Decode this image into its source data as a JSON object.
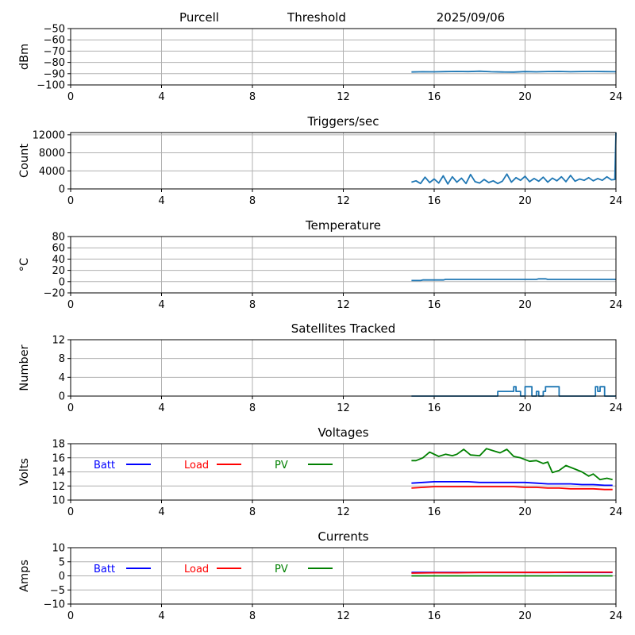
{
  "header": {
    "station": "Purcell",
    "mode": "Threshold",
    "date": "2025/09/06"
  },
  "colors": {
    "series_default": "#1f77b4",
    "batt": "#0000ff",
    "load": "#ff0000",
    "pv": "#008000",
    "grid": "#b0b0b0"
  },
  "chart_data": [
    {
      "type": "line",
      "title": "",
      "xlabel": "",
      "ylabel": "dBm",
      "xlim": [
        0,
        24
      ],
      "ylim": [
        -100,
        -50
      ],
      "xticks": [
        "0",
        "4",
        "8",
        "12",
        "16",
        "20",
        "24"
      ],
      "yticks": [
        "−50",
        "−60",
        "−70",
        "−80",
        "−90",
        "−100"
      ],
      "grid": true,
      "series": [
        {
          "color": "#1f77b4",
          "x": [
            15.0,
            15.5,
            16.0,
            16.5,
            17.0,
            17.5,
            18.0,
            18.5,
            19.0,
            19.5,
            20.0,
            20.5,
            21.0,
            21.5,
            22.0,
            22.5,
            23.0,
            23.5,
            24.0
          ],
          "y": [
            -88.5,
            -88.3,
            -88.4,
            -88.2,
            -88.0,
            -88.2,
            -87.8,
            -88.3,
            -88.5,
            -88.6,
            -88.2,
            -88.4,
            -88.1,
            -88.0,
            -88.3,
            -88.1,
            -88.0,
            -88.2,
            -88.3
          ]
        }
      ]
    },
    {
      "type": "line",
      "title": "Triggers/sec",
      "xlabel": "",
      "ylabel": "Count",
      "xlim": [
        0,
        24
      ],
      "ylim": [
        0,
        12500
      ],
      "xticks": [
        "0",
        "4",
        "8",
        "12",
        "16",
        "20",
        "24"
      ],
      "yticks": [
        "0",
        "4000",
        "8000",
        "12000"
      ],
      "grid": true,
      "series": [
        {
          "color": "#1f77b4",
          "x": [
            15.0,
            15.2,
            15.4,
            15.6,
            15.8,
            16.0,
            16.2,
            16.4,
            16.6,
            16.8,
            17.0,
            17.2,
            17.4,
            17.6,
            17.8,
            18.0,
            18.2,
            18.4,
            18.6,
            18.8,
            19.0,
            19.2,
            19.4,
            19.6,
            19.8,
            20.0,
            20.2,
            20.4,
            20.6,
            20.8,
            21.0,
            21.2,
            21.4,
            21.6,
            21.8,
            22.0,
            22.2,
            22.4,
            22.6,
            22.8,
            23.0,
            23.2,
            23.4,
            23.6,
            23.8,
            23.95,
            24.0
          ],
          "y": [
            1500,
            1800,
            1200,
            2600,
            1400,
            2200,
            1300,
            2900,
            1100,
            2700,
            1500,
            2400,
            1200,
            3200,
            1600,
            1300,
            2100,
            1400,
            1800,
            1200,
            1700,
            3300,
            1500,
            2500,
            1900,
            2800,
            1600,
            2300,
            1700,
            2600,
            1500,
            2400,
            1800,
            2700,
            1600,
            3000,
            1700,
            2200,
            1900,
            2500,
            1800,
            2300,
            1900,
            2700,
            2000,
            2100,
            12500
          ]
        }
      ]
    },
    {
      "type": "line",
      "title": "Temperature",
      "xlabel": "",
      "ylabel": "°C",
      "xlim": [
        0,
        24
      ],
      "ylim": [
        -20,
        80
      ],
      "xticks": [
        "0",
        "4",
        "8",
        "12",
        "16",
        "20",
        "24"
      ],
      "yticks": [
        "−20",
        "0",
        "20",
        "40",
        "60",
        "80"
      ],
      "grid": true,
      "series": [
        {
          "color": "#1f77b4",
          "x": [
            15.0,
            15.4,
            15.5,
            16.4,
            16.5,
            20.5,
            20.6,
            20.9,
            21.0,
            24.0
          ],
          "y": [
            2,
            2,
            3,
            3,
            4,
            4,
            5,
            5,
            4,
            4
          ]
        }
      ]
    },
    {
      "type": "line",
      "title": "Satellites Tracked",
      "xlabel": "",
      "ylabel": "Number",
      "xlim": [
        0,
        24
      ],
      "ylim": [
        0,
        12
      ],
      "xticks": [
        "0",
        "4",
        "8",
        "12",
        "16",
        "20",
        "24"
      ],
      "yticks": [
        "0",
        "4",
        "8",
        "12"
      ],
      "grid": true,
      "series": [
        {
          "color": "#1f77b4",
          "x": [
            15.0,
            18.8,
            18.8,
            19.5,
            19.5,
            19.6,
            19.6,
            19.8,
            19.8,
            20.0,
            20.0,
            20.3,
            20.3,
            20.5,
            20.5,
            20.6,
            20.6,
            20.8,
            20.8,
            20.9,
            20.9,
            21.1,
            21.1,
            21.5,
            21.5,
            23.1,
            23.1,
            23.2,
            23.2,
            23.3,
            23.3,
            23.5,
            23.5,
            24.0
          ],
          "y": [
            0,
            0,
            1,
            1,
            2,
            2,
            1,
            1,
            0,
            0,
            2,
            2,
            0,
            0,
            1,
            1,
            0,
            0,
            1,
            1,
            2,
            2,
            2,
            2,
            0,
            0,
            2,
            2,
            1,
            1,
            2,
            2,
            0,
            0
          ]
        }
      ]
    },
    {
      "type": "line",
      "title": "Voltages",
      "xlabel": "",
      "ylabel": "Volts",
      "xlim": [
        0,
        24
      ],
      "ylim": [
        10,
        18
      ],
      "xticks": [
        "0",
        "4",
        "8",
        "12",
        "16",
        "20",
        "24"
      ],
      "yticks": [
        "10",
        "12",
        "14",
        "16",
        "18"
      ],
      "grid": true,
      "legend": [
        {
          "name": "Batt",
          "color": "#0000ff"
        },
        {
          "name": "Load",
          "color": "#ff0000"
        },
        {
          "name": "PV",
          "color": "#008000"
        }
      ],
      "series": [
        {
          "name": "Batt",
          "color": "#0000ff",
          "x": [
            15.0,
            15.5,
            16.0,
            16.5,
            17.0,
            17.5,
            18.0,
            18.5,
            19.0,
            19.5,
            20.0,
            20.5,
            21.0,
            21.5,
            22.0,
            22.5,
            23.0,
            23.5,
            23.85
          ],
          "y": [
            12.4,
            12.5,
            12.6,
            12.6,
            12.6,
            12.6,
            12.5,
            12.5,
            12.5,
            12.5,
            12.5,
            12.4,
            12.3,
            12.3,
            12.3,
            12.2,
            12.2,
            12.1,
            12.1
          ]
        },
        {
          "name": "Load",
          "color": "#ff0000",
          "x": [
            15.0,
            15.5,
            16.0,
            16.5,
            17.0,
            17.5,
            18.0,
            18.5,
            19.0,
            19.5,
            20.0,
            20.5,
            21.0,
            21.5,
            22.0,
            22.5,
            23.0,
            23.5,
            23.85
          ],
          "y": [
            11.7,
            11.8,
            11.9,
            11.9,
            11.9,
            11.9,
            11.9,
            11.9,
            11.9,
            11.9,
            11.8,
            11.8,
            11.7,
            11.7,
            11.6,
            11.6,
            11.6,
            11.5,
            11.5
          ]
        },
        {
          "name": "PV",
          "color": "#008000",
          "x": [
            15.0,
            15.2,
            15.5,
            15.8,
            16.2,
            16.5,
            16.8,
            17.0,
            17.3,
            17.6,
            18.0,
            18.3,
            18.6,
            18.9,
            19.2,
            19.5,
            19.8,
            20.2,
            20.5,
            20.8,
            21.0,
            21.2,
            21.5,
            21.8,
            22.2,
            22.5,
            22.8,
            23.0,
            23.3,
            23.6,
            23.85
          ],
          "y": [
            15.6,
            15.6,
            16.0,
            16.8,
            16.2,
            16.5,
            16.3,
            16.5,
            17.2,
            16.4,
            16.3,
            17.3,
            17.0,
            16.7,
            17.2,
            16.2,
            16.0,
            15.5,
            15.6,
            15.2,
            15.4,
            13.9,
            14.2,
            14.9,
            14.4,
            14.0,
            13.4,
            13.7,
            12.9,
            13.1,
            12.9
          ]
        }
      ]
    },
    {
      "type": "line",
      "title": "Currents",
      "xlabel": "",
      "ylabel": "Amps",
      "xlim": [
        0,
        24
      ],
      "ylim": [
        -10,
        10
      ],
      "xticks": [
        "0",
        "4",
        "8",
        "12",
        "16",
        "20",
        "24"
      ],
      "yticks": [
        "−10",
        "−5",
        "0",
        "5",
        "10"
      ],
      "grid": true,
      "legend": [
        {
          "name": "Batt",
          "color": "#0000ff"
        },
        {
          "name": "Load",
          "color": "#ff0000"
        },
        {
          "name": "PV",
          "color": "#008000"
        }
      ],
      "series": [
        {
          "name": "Batt",
          "color": "#0000ff",
          "x": [
            15.0,
            17.0,
            19.0,
            21.0,
            23.0,
            23.85
          ],
          "y": [
            1.2,
            1.2,
            1.2,
            1.2,
            1.2,
            1.2
          ]
        },
        {
          "name": "Load",
          "color": "#ff0000",
          "x": [
            15.0,
            16.0,
            17.0,
            18.0,
            19.0,
            20.0,
            21.0,
            22.0,
            23.0,
            23.85
          ],
          "y": [
            1.0,
            1.1,
            1.1,
            1.2,
            1.2,
            1.2,
            1.2,
            1.3,
            1.3,
            1.3
          ]
        },
        {
          "name": "PV",
          "color": "#008000",
          "x": [
            15.0,
            17.0,
            19.0,
            21.0,
            23.0,
            23.85
          ],
          "y": [
            0.0,
            0.0,
            0.0,
            0.0,
            0.0,
            0.0
          ]
        }
      ]
    }
  ]
}
